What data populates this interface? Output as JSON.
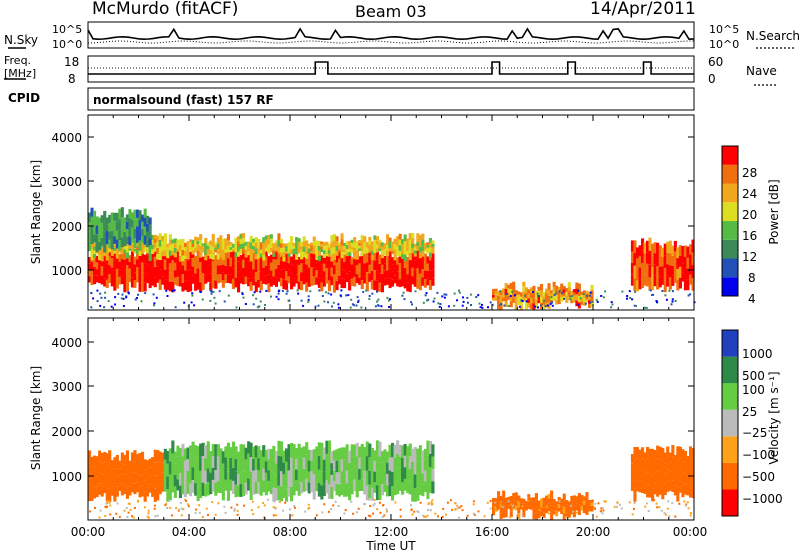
{
  "header": {
    "station": "McMurdo (fitACF)",
    "beam": "Beam 03",
    "date": "14/Apr/2011"
  },
  "noise_panel": {
    "left_label": "N.Sky",
    "right_label": "N.Search",
    "left_ticks": [
      "10^5",
      "10^0"
    ],
    "right_ticks": [
      "10^5",
      "10^0"
    ]
  },
  "freq_panel": {
    "left_label_line1": "Freq.",
    "left_label_line2": "[MHz]",
    "right_label": "Nave",
    "left_ticks": [
      "18",
      "8"
    ],
    "right_ticks": [
      "60",
      "0"
    ]
  },
  "cpid": {
    "label": "CPID",
    "value": "normalsound (fast) 157 RF"
  },
  "axes": {
    "ylabel": "Slant Range [km]",
    "xlabel": "Time UT",
    "x_ticks": [
      "00:00",
      "04:00",
      "08:00",
      "12:00",
      "16:00",
      "20:00",
      "00:00"
    ],
    "y_ticks": [
      "4000",
      "3000",
      "2000",
      "1000"
    ]
  },
  "colors": {
    "power": [
      "#0000ee",
      "#2050b8",
      "#3a8a5a",
      "#55bb44",
      "#dddd22",
      "#f2a81c",
      "#f07010",
      "#ff0000"
    ],
    "velocity": [
      "#ff0000",
      "#ff6a00",
      "#ffa21a",
      "#bbbbbb",
      "#66cc44",
      "#2f8a4a",
      "#2040c0"
    ]
  },
  "chart_data": [
    {
      "type": "heatmap",
      "title": "",
      "xlabel": "",
      "ylabel": "Slant Range [km]",
      "xlim": [
        "00:00",
        "24:00"
      ],
      "ylim": [
        180,
        4600
      ],
      "colorbar": {
        "label": "Power [dB]",
        "ticks": [
          "28",
          "24",
          "20",
          "16",
          "12",
          "8",
          "4"
        ],
        "range": [
          0,
          30
        ]
      },
      "regions": [
        {
          "t_start": 0.0,
          "t_end": 13.7,
          "range_low": 700,
          "range_high": 1500,
          "value": 28
        },
        {
          "t_start": 0.0,
          "t_end": 13.7,
          "range_low": 1400,
          "range_high": 1800,
          "value": 18
        },
        {
          "t_start": 0.0,
          "t_end": 2.5,
          "range_low": 1600,
          "range_high": 2400,
          "value": 10
        },
        {
          "t_start": 16.0,
          "t_end": 20.0,
          "range_low": 300,
          "range_high": 700,
          "value": 22
        },
        {
          "t_start": 21.5,
          "t_end": 24.0,
          "range_low": 700,
          "range_high": 1700,
          "value": 26
        }
      ]
    },
    {
      "type": "heatmap",
      "title": "",
      "xlabel": "Time UT",
      "ylabel": "Slant Range [km]",
      "xlim": [
        "00:00",
        "24:00"
      ],
      "ylim": [
        180,
        4600
      ],
      "colorbar": {
        "label": "Velocity [m s⁻¹]",
        "ticks": [
          "1000",
          "500",
          "100",
          "25",
          "−25",
          "−100",
          "−500",
          "−1000"
        ],
        "range": [
          -1000,
          1000
        ]
      },
      "regions": [
        {
          "t_start": 0.0,
          "t_end": 3.0,
          "range_low": 700,
          "range_high": 1600,
          "value": -300
        },
        {
          "t_start": 3.0,
          "t_end": 13.7,
          "range_low": 700,
          "range_high": 1800,
          "value": 60
        },
        {
          "t_start": 16.0,
          "t_end": 20.0,
          "range_low": 300,
          "range_high": 700,
          "value": -150
        },
        {
          "t_start": 21.5,
          "t_end": 24.0,
          "range_low": 700,
          "range_high": 1700,
          "value": -300
        }
      ]
    }
  ]
}
